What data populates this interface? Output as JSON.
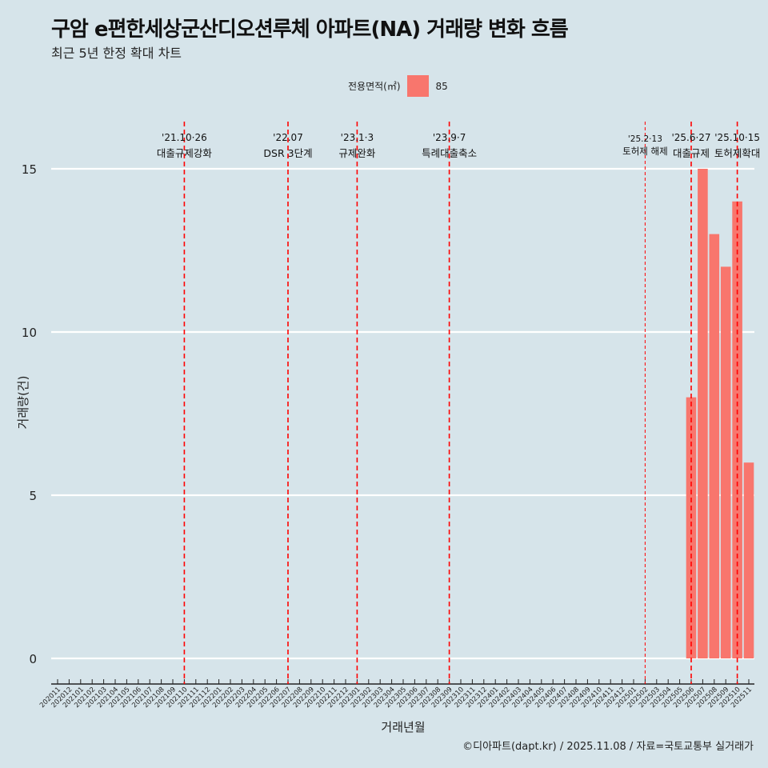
{
  "title": "구암 e편한세상군산디오션루체 아파트(NA) 거래량 변화 흐름",
  "subtitle": "최근 5년 한정 확대 차트",
  "caption": "©디아파트(dapt.kr) / 2025.11.08 / 자료=국토교통부 실거래가",
  "colors": {
    "bar": "#f8766d",
    "background": "#d6e4ea",
    "event_line": "#ff0000"
  },
  "chart_data": {
    "type": "bar",
    "title": "구암 e편한세상군산디오션루체 아파트(NA) 거래량 변화 흐름",
    "xlabel": "거래년월",
    "ylabel": "거래량(건)",
    "ylim": [
      0,
      15
    ],
    "yticks": [
      0,
      5,
      10,
      15
    ],
    "legend": {
      "title": "전용면적(㎡)",
      "entries": [
        "85"
      ],
      "position": "top"
    },
    "categories": [
      "202011",
      "202012",
      "202101",
      "202102",
      "202103",
      "202104",
      "202105",
      "202106",
      "202107",
      "202108",
      "202109",
      "202110",
      "202111",
      "202112",
      "202201",
      "202202",
      "202203",
      "202204",
      "202205",
      "202206",
      "202207",
      "202208",
      "202209",
      "202210",
      "202211",
      "202212",
      "202301",
      "202302",
      "202303",
      "202304",
      "202305",
      "202306",
      "202307",
      "202308",
      "202309",
      "202310",
      "202311",
      "202312",
      "202401",
      "202402",
      "202403",
      "202404",
      "202405",
      "202406",
      "202407",
      "202408",
      "202409",
      "202410",
      "202411",
      "202412",
      "202501",
      "202502",
      "202503",
      "202504",
      "202505",
      "202506",
      "202507",
      "202508",
      "202509",
      "202510",
      "202511"
    ],
    "series": [
      {
        "name": "85",
        "values": {
          "202506": 8,
          "202507": 15,
          "202508": 13,
          "202509": 12,
          "202510": 14,
          "202511": 6
        }
      }
    ],
    "annotations": [
      {
        "x": "202110",
        "date": "'21.10·26",
        "label": "대출규제강화",
        "style": "major"
      },
      {
        "x": "202207",
        "date": "'22.07",
        "label": "DSR 3단계",
        "style": "major"
      },
      {
        "x": "202301",
        "date": "'23.1·3",
        "label": "규제완화",
        "style": "major"
      },
      {
        "x": "202309",
        "date": "'23.9·7",
        "label": "특례대출축소",
        "style": "major"
      },
      {
        "x": "202502",
        "date": "'25.2·13",
        "label": "토허제 해제",
        "style": "minor"
      },
      {
        "x": "202506",
        "date": "'25.6·27",
        "label": "대출규제",
        "style": "major"
      },
      {
        "x": "202510",
        "date": "'25.10·15",
        "label": "토허제확대",
        "style": "major"
      }
    ]
  }
}
